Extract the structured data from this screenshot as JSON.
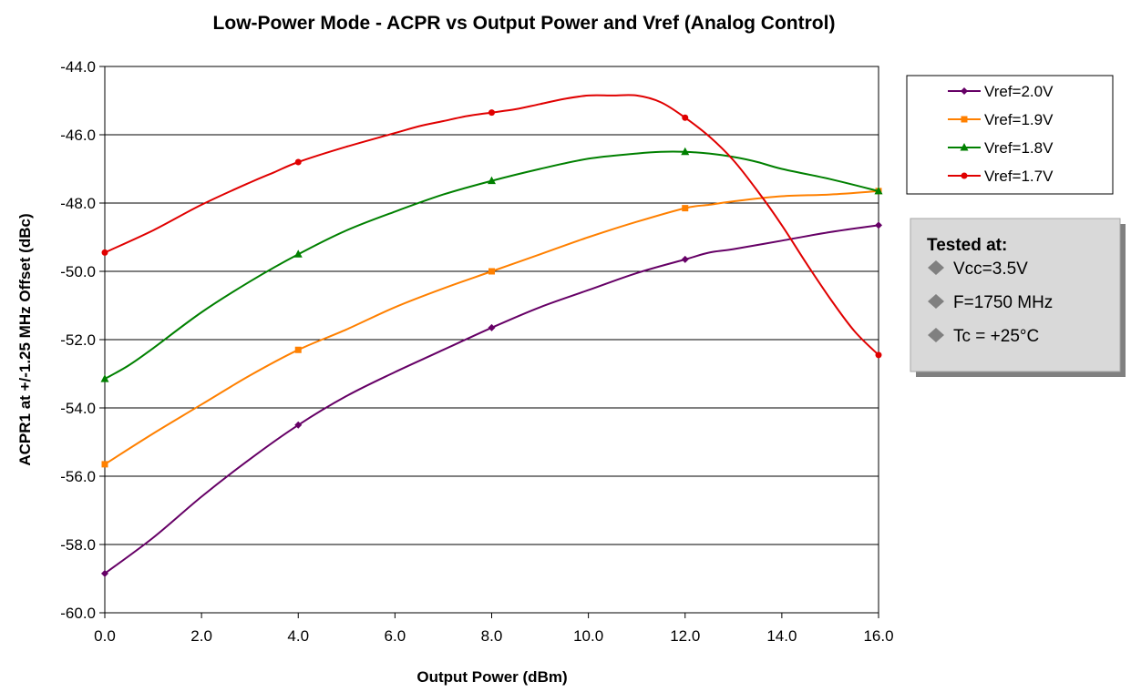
{
  "chart_data": {
    "type": "line",
    "title": "Low-Power Mode - ACPR  vs Output Power and Vref (Analog Control)",
    "xlabel": "Output Power (dBm)",
    "ylabel": "ACPR1 at +/-1.25 MHz Offset (dBc)",
    "xlim": [
      0,
      16
    ],
    "ylim": [
      -60,
      -44
    ],
    "x_ticks": [
      "0.0",
      "2.0",
      "4.0",
      "6.0",
      "8.0",
      "10.0",
      "12.0",
      "14.0",
      "16.0"
    ],
    "y_ticks": [
      "-44.0",
      "-46.0",
      "-48.0",
      "-50.0",
      "-52.0",
      "-54.0",
      "-56.0",
      "-58.0",
      "-60.0"
    ],
    "grid": "horizontal",
    "legend_position": "right",
    "series": [
      {
        "name": "Vref=2.0V",
        "color": "#660066",
        "marker": "diamond",
        "x": [
          0,
          4,
          8,
          12,
          16
        ],
        "y": [
          -58.85,
          -54.5,
          -51.65,
          -49.65,
          -48.65
        ],
        "curve": [
          [
            0,
            -58.85
          ],
          [
            1,
            -57.8
          ],
          [
            2,
            -56.6
          ],
          [
            3,
            -55.5
          ],
          [
            4,
            -54.5
          ],
          [
            5,
            -53.65
          ],
          [
            6,
            -52.95
          ],
          [
            7,
            -52.3
          ],
          [
            8,
            -51.65
          ],
          [
            9,
            -51.05
          ],
          [
            10,
            -50.55
          ],
          [
            11,
            -50.05
          ],
          [
            12,
            -49.65
          ],
          [
            12.5,
            -49.45
          ],
          [
            13,
            -49.35
          ],
          [
            14,
            -49.1
          ],
          [
            15,
            -48.85
          ],
          [
            16,
            -48.65
          ]
        ]
      },
      {
        "name": "Vref=1.9V",
        "color": "#ff8000",
        "marker": "square",
        "x": [
          0,
          4,
          8,
          12,
          16
        ],
        "y": [
          -55.65,
          -52.3,
          -50.0,
          -48.15,
          -47.65
        ],
        "curve": [
          [
            0,
            -55.65
          ],
          [
            1,
            -54.75
          ],
          [
            2,
            -53.9
          ],
          [
            3,
            -53.05
          ],
          [
            4,
            -52.3
          ],
          [
            5,
            -51.7
          ],
          [
            6,
            -51.05
          ],
          [
            7,
            -50.5
          ],
          [
            8,
            -50.0
          ],
          [
            9,
            -49.5
          ],
          [
            10,
            -49.0
          ],
          [
            11,
            -48.55
          ],
          [
            12,
            -48.15
          ],
          [
            12.5,
            -48.05
          ],
          [
            13,
            -47.95
          ],
          [
            14,
            -47.8
          ],
          [
            15,
            -47.75
          ],
          [
            16,
            -47.65
          ]
        ]
      },
      {
        "name": "Vref=1.8V",
        "color": "#008000",
        "marker": "triangle",
        "x": [
          0,
          4,
          8,
          12,
          16
        ],
        "y": [
          -53.15,
          -49.5,
          -47.35,
          -46.5,
          -47.65
        ],
        "curve": [
          [
            0,
            -53.15
          ],
          [
            0.5,
            -52.75
          ],
          [
            1,
            -52.25
          ],
          [
            2,
            -51.2
          ],
          [
            3,
            -50.3
          ],
          [
            4,
            -49.5
          ],
          [
            5,
            -48.8
          ],
          [
            6,
            -48.25
          ],
          [
            7,
            -47.75
          ],
          [
            8,
            -47.35
          ],
          [
            9,
            -47.0
          ],
          [
            10,
            -46.7
          ],
          [
            11,
            -46.55
          ],
          [
            11.5,
            -46.5
          ],
          [
            12,
            -46.5
          ],
          [
            12.5,
            -46.55
          ],
          [
            13,
            -46.65
          ],
          [
            13.5,
            -46.8
          ],
          [
            14,
            -47.0
          ],
          [
            15,
            -47.3
          ],
          [
            16,
            -47.65
          ]
        ]
      },
      {
        "name": "Vref=1.7V",
        "color": "#e00000",
        "marker": "circle",
        "x": [
          0,
          4,
          8,
          12,
          16
        ],
        "y": [
          -49.45,
          -46.8,
          -45.35,
          -45.5,
          -52.45
        ],
        "curve": [
          [
            0,
            -49.45
          ],
          [
            1,
            -48.8
          ],
          [
            2,
            -48.05
          ],
          [
            3,
            -47.4
          ],
          [
            3.5,
            -47.1
          ],
          [
            4,
            -46.8
          ],
          [
            5,
            -46.35
          ],
          [
            6,
            -45.95
          ],
          [
            6.5,
            -45.75
          ],
          [
            7,
            -45.6
          ],
          [
            7.5,
            -45.45
          ],
          [
            8,
            -45.35
          ],
          [
            8.5,
            -45.25
          ],
          [
            9,
            -45.1
          ],
          [
            9.5,
            -44.95
          ],
          [
            10,
            -44.85
          ],
          [
            10.5,
            -44.85
          ],
          [
            11,
            -44.85
          ],
          [
            11.5,
            -45.05
          ],
          [
            12,
            -45.5
          ],
          [
            12.5,
            -46.05
          ],
          [
            13,
            -46.75
          ],
          [
            13.5,
            -47.65
          ],
          [
            14,
            -48.65
          ],
          [
            14.5,
            -49.75
          ],
          [
            15,
            -50.8
          ],
          [
            15.5,
            -51.75
          ],
          [
            16,
            -52.45
          ]
        ]
      }
    ]
  },
  "note": {
    "title": "Tested at:",
    "items": [
      "Vcc=3.5V",
      "F=1750 MHz",
      "Tc = +25°C"
    ]
  }
}
